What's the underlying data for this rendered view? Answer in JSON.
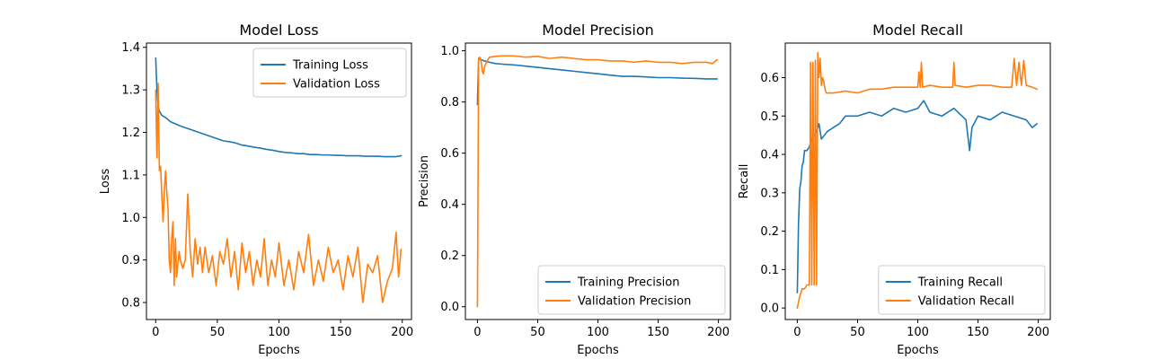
{
  "chart_data": [
    {
      "type": "line",
      "title": "Model Loss",
      "xlabel": "Epochs",
      "ylabel": "Loss",
      "xlim": [
        -7.5,
        207.5
      ],
      "ylim": [
        0.76,
        1.41
      ],
      "xticks": [
        0,
        50,
        100,
        150,
        200
      ],
      "yticks": [
        0.8,
        0.9,
        1.0,
        1.1,
        1.2,
        1.3,
        1.4
      ],
      "ytick_labels": [
        "0.8",
        "0.9",
        "1.0",
        "1.1",
        "1.2",
        "1.3",
        "1.4"
      ],
      "legend_position": "top-right",
      "series": [
        {
          "name": "Training Loss",
          "color": "#1f77b4",
          "x": [
            0,
            1,
            2,
            3,
            5,
            8,
            12,
            16,
            20,
            25,
            30,
            35,
            40,
            45,
            50,
            55,
            60,
            65,
            70,
            75,
            80,
            85,
            90,
            95,
            100,
            105,
            110,
            115,
            120,
            125,
            130,
            135,
            140,
            145,
            150,
            155,
            160,
            165,
            170,
            175,
            180,
            185,
            190,
            195,
            199
          ],
          "y": [
            1.375,
            1.3,
            1.26,
            1.25,
            1.24,
            1.235,
            1.225,
            1.22,
            1.215,
            1.21,
            1.205,
            1.2,
            1.195,
            1.19,
            1.185,
            1.18,
            1.178,
            1.175,
            1.17,
            1.168,
            1.165,
            1.163,
            1.16,
            1.158,
            1.155,
            1.153,
            1.152,
            1.15,
            1.15,
            1.148,
            1.148,
            1.147,
            1.147,
            1.146,
            1.146,
            1.145,
            1.145,
            1.145,
            1.144,
            1.144,
            1.144,
            1.143,
            1.143,
            1.143,
            1.145
          ]
        },
        {
          "name": "Validation Loss",
          "color": "#ff7f0e",
          "x": [
            0,
            1,
            2,
            3,
            4,
            5,
            6,
            7,
            8,
            9,
            10,
            11,
            12,
            13,
            14,
            15,
            16,
            17,
            18,
            19,
            20,
            22,
            24,
            26,
            28,
            30,
            32,
            34,
            36,
            38,
            40,
            43,
            46,
            49,
            52,
            55,
            58,
            61,
            64,
            67,
            70,
            73,
            76,
            79,
            82,
            85,
            88,
            91,
            94,
            97,
            100,
            104,
            108,
            112,
            116,
            120,
            124,
            128,
            132,
            136,
            140,
            144,
            148,
            152,
            156,
            160,
            164,
            168,
            172,
            176,
            180,
            184,
            188,
            192,
            195,
            197,
            199
          ],
          "y": [
            1.3,
            1.14,
            1.315,
            1.11,
            1.12,
            1.05,
            0.99,
            1.06,
            1.11,
            1.06,
            1.02,
            0.9,
            0.87,
            0.95,
            0.99,
            0.84,
            0.95,
            0.86,
            0.89,
            0.92,
            0.9,
            0.88,
            0.9,
            1.055,
            0.92,
            0.86,
            0.95,
            0.89,
            0.93,
            0.87,
            0.93,
            0.87,
            0.91,
            0.84,
            0.92,
            0.89,
            0.95,
            0.86,
            0.92,
            0.83,
            0.94,
            0.87,
            0.92,
            0.84,
            0.9,
            0.86,
            0.95,
            0.84,
            0.9,
            0.86,
            0.94,
            0.84,
            0.9,
            0.83,
            0.92,
            0.87,
            0.96,
            0.84,
            0.9,
            0.85,
            0.93,
            0.87,
            0.9,
            0.83,
            0.91,
            0.86,
            0.93,
            0.8,
            0.89,
            0.87,
            0.91,
            0.8,
            0.85,
            0.88,
            0.965,
            0.86,
            0.925
          ]
        }
      ]
    },
    {
      "type": "line",
      "title": "Model Precision",
      "xlabel": "Epochs",
      "ylabel": "Precision",
      "xlim": [
        -10,
        210
      ],
      "ylim": [
        -0.05,
        1.03
      ],
      "xticks": [
        0,
        50,
        100,
        150,
        200
      ],
      "yticks": [
        0.0,
        0.2,
        0.4,
        0.6,
        0.8,
        1.0
      ],
      "ytick_labels": [
        "0.0",
        "0.2",
        "0.4",
        "0.6",
        "0.8",
        "1.0"
      ],
      "legend_position": "bottom-right",
      "series": [
        {
          "name": "Training Precision",
          "color": "#1f77b4",
          "x": [
            0,
            1,
            3,
            6,
            10,
            15,
            20,
            30,
            40,
            50,
            60,
            70,
            80,
            90,
            100,
            110,
            120,
            130,
            140,
            150,
            160,
            170,
            180,
            190,
            199
          ],
          "y": [
            0.79,
            0.97,
            0.965,
            0.96,
            0.955,
            0.95,
            0.948,
            0.945,
            0.94,
            0.935,
            0.93,
            0.925,
            0.92,
            0.915,
            0.91,
            0.905,
            0.9,
            0.9,
            0.898,
            0.895,
            0.895,
            0.893,
            0.892,
            0.89,
            0.89
          ]
        },
        {
          "name": "Validation Precision",
          "color": "#ff7f0e",
          "x": [
            0,
            1,
            2,
            3,
            4,
            5,
            6,
            8,
            10,
            15,
            20,
            30,
            40,
            50,
            60,
            70,
            80,
            90,
            100,
            110,
            120,
            130,
            140,
            150,
            160,
            170,
            180,
            190,
            195,
            199
          ],
          "y": [
            0.0,
            0.97,
            0.975,
            0.96,
            0.92,
            0.91,
            0.94,
            0.96,
            0.975,
            0.978,
            0.98,
            0.98,
            0.975,
            0.978,
            0.97,
            0.975,
            0.97,
            0.965,
            0.965,
            0.96,
            0.96,
            0.955,
            0.96,
            0.955,
            0.955,
            0.95,
            0.955,
            0.955,
            0.95,
            0.965
          ]
        }
      ]
    },
    {
      "type": "line",
      "title": "Model Recall",
      "xlabel": "Epochs",
      "ylabel": "Recall",
      "xlim": [
        -10,
        210
      ],
      "ylim": [
        -0.03,
        0.69
      ],
      "xticks": [
        0,
        50,
        100,
        150,
        200
      ],
      "yticks": [
        0.0,
        0.1,
        0.2,
        0.3,
        0.4,
        0.5,
        0.6
      ],
      "ytick_labels": [
        "0.0",
        "0.1",
        "0.2",
        "0.3",
        "0.4",
        "0.5",
        "0.6"
      ],
      "legend_position": "bottom-right",
      "series": [
        {
          "name": "Training Recall",
          "color": "#1f77b4",
          "x": [
            0,
            1,
            2,
            3,
            4,
            5,
            6,
            8,
            10,
            12,
            14,
            16,
            18,
            20,
            25,
            30,
            35,
            40,
            50,
            60,
            70,
            80,
            90,
            100,
            105,
            110,
            120,
            130,
            140,
            143,
            145,
            150,
            160,
            170,
            180,
            190,
            195,
            199
          ],
          "y": [
            0.04,
            0.22,
            0.31,
            0.33,
            0.37,
            0.38,
            0.41,
            0.41,
            0.42,
            0.44,
            0.45,
            0.46,
            0.48,
            0.44,
            0.46,
            0.47,
            0.48,
            0.5,
            0.5,
            0.51,
            0.5,
            0.52,
            0.51,
            0.52,
            0.54,
            0.51,
            0.5,
            0.52,
            0.49,
            0.41,
            0.47,
            0.5,
            0.49,
            0.51,
            0.5,
            0.49,
            0.47,
            0.48
          ]
        },
        {
          "name": "Validation Recall",
          "color": "#ff7f0e",
          "x": [
            0,
            2,
            4,
            6,
            8,
            10,
            11,
            12,
            13,
            14,
            15,
            16,
            17,
            18,
            19,
            20,
            21,
            22,
            23,
            24,
            25,
            30,
            40,
            50,
            60,
            70,
            80,
            90,
            100,
            101,
            102,
            103,
            104,
            110,
            120,
            129,
            130,
            131,
            140,
            150,
            160,
            170,
            178,
            180,
            182,
            184,
            186,
            188,
            190,
            195,
            199
          ],
          "y": [
            0.0,
            0.03,
            0.05,
            0.05,
            0.06,
            0.06,
            0.64,
            0.06,
            0.64,
            0.06,
            0.645,
            0.06,
            0.665,
            0.6,
            0.65,
            0.58,
            0.6,
            0.59,
            0.57,
            0.56,
            0.56,
            0.56,
            0.565,
            0.56,
            0.57,
            0.57,
            0.575,
            0.575,
            0.575,
            0.615,
            0.575,
            0.64,
            0.575,
            0.58,
            0.575,
            0.575,
            0.64,
            0.58,
            0.575,
            0.58,
            0.58,
            0.575,
            0.575,
            0.65,
            0.58,
            0.64,
            0.58,
            0.645,
            0.58,
            0.575,
            0.57
          ]
        }
      ]
    }
  ]
}
